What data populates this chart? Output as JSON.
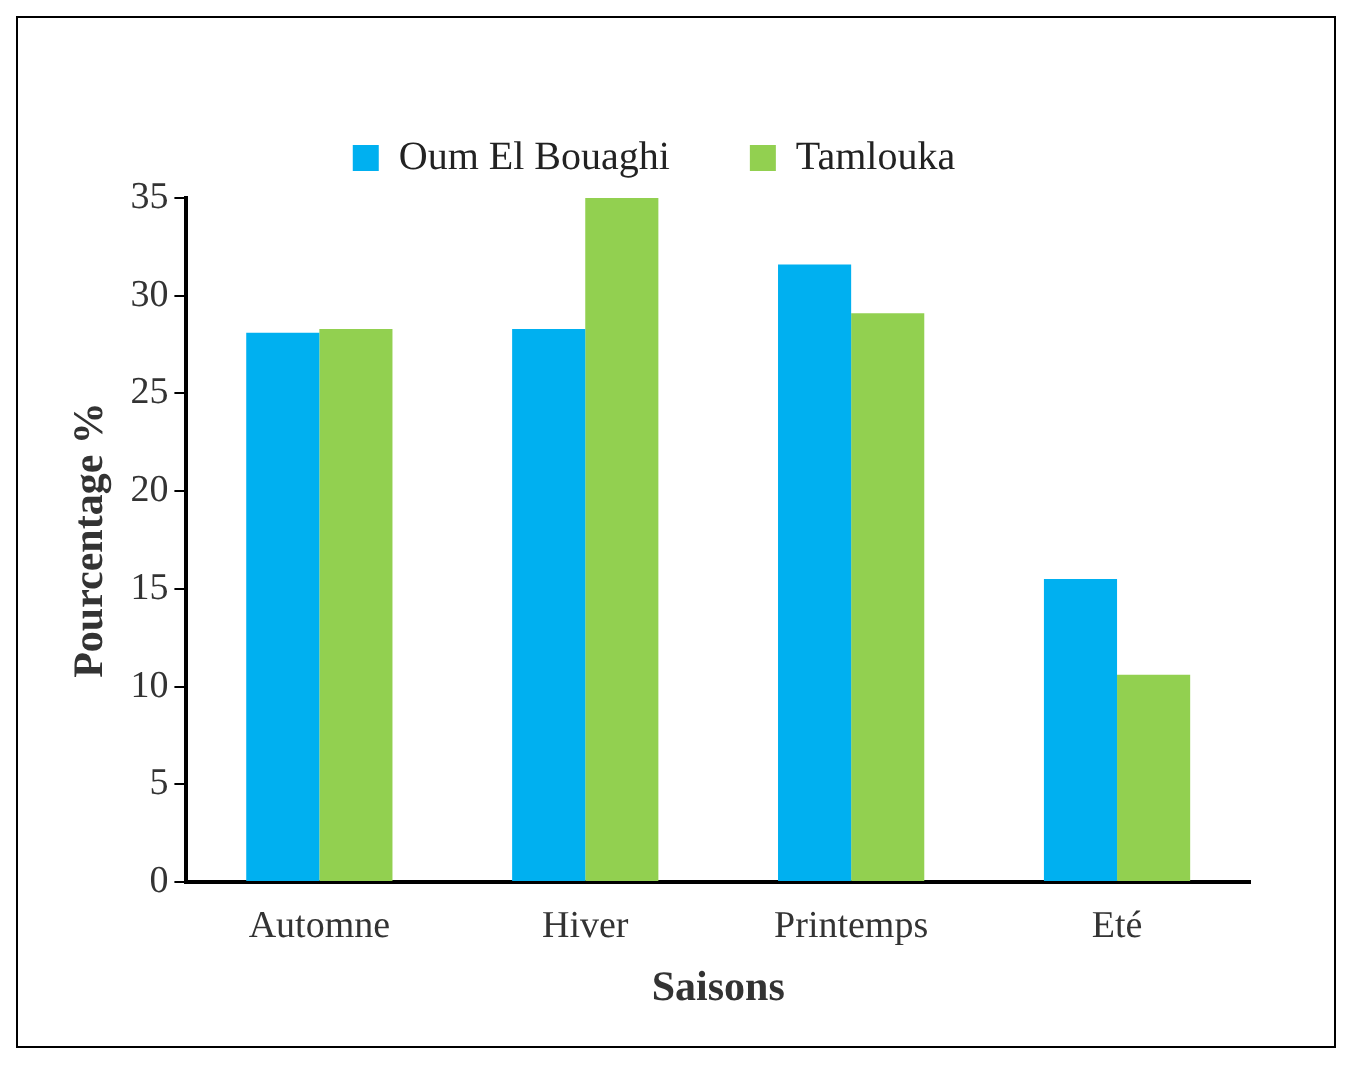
{
  "chart_data": {
    "type": "bar",
    "xlabel": "Saisons",
    "ylabel": "Pourcentage %",
    "categories": [
      "Automne",
      "Hiver",
      "Printemps",
      "Eté"
    ],
    "series": [
      {
        "name": "Oum El Bouaghi",
        "color": "#00b0f0",
        "values": [
          28.1,
          28.3,
          31.6,
          15.5
        ]
      },
      {
        "name": "Tamlouka",
        "color": "#92d050",
        "values": [
          28.3,
          35,
          29.1,
          10.6
        ]
      }
    ],
    "ylim": [
      0,
      35
    ],
    "yticks": [
      0,
      5,
      10,
      15,
      20,
      25,
      30,
      35
    ],
    "grid": false,
    "legend": "top"
  }
}
